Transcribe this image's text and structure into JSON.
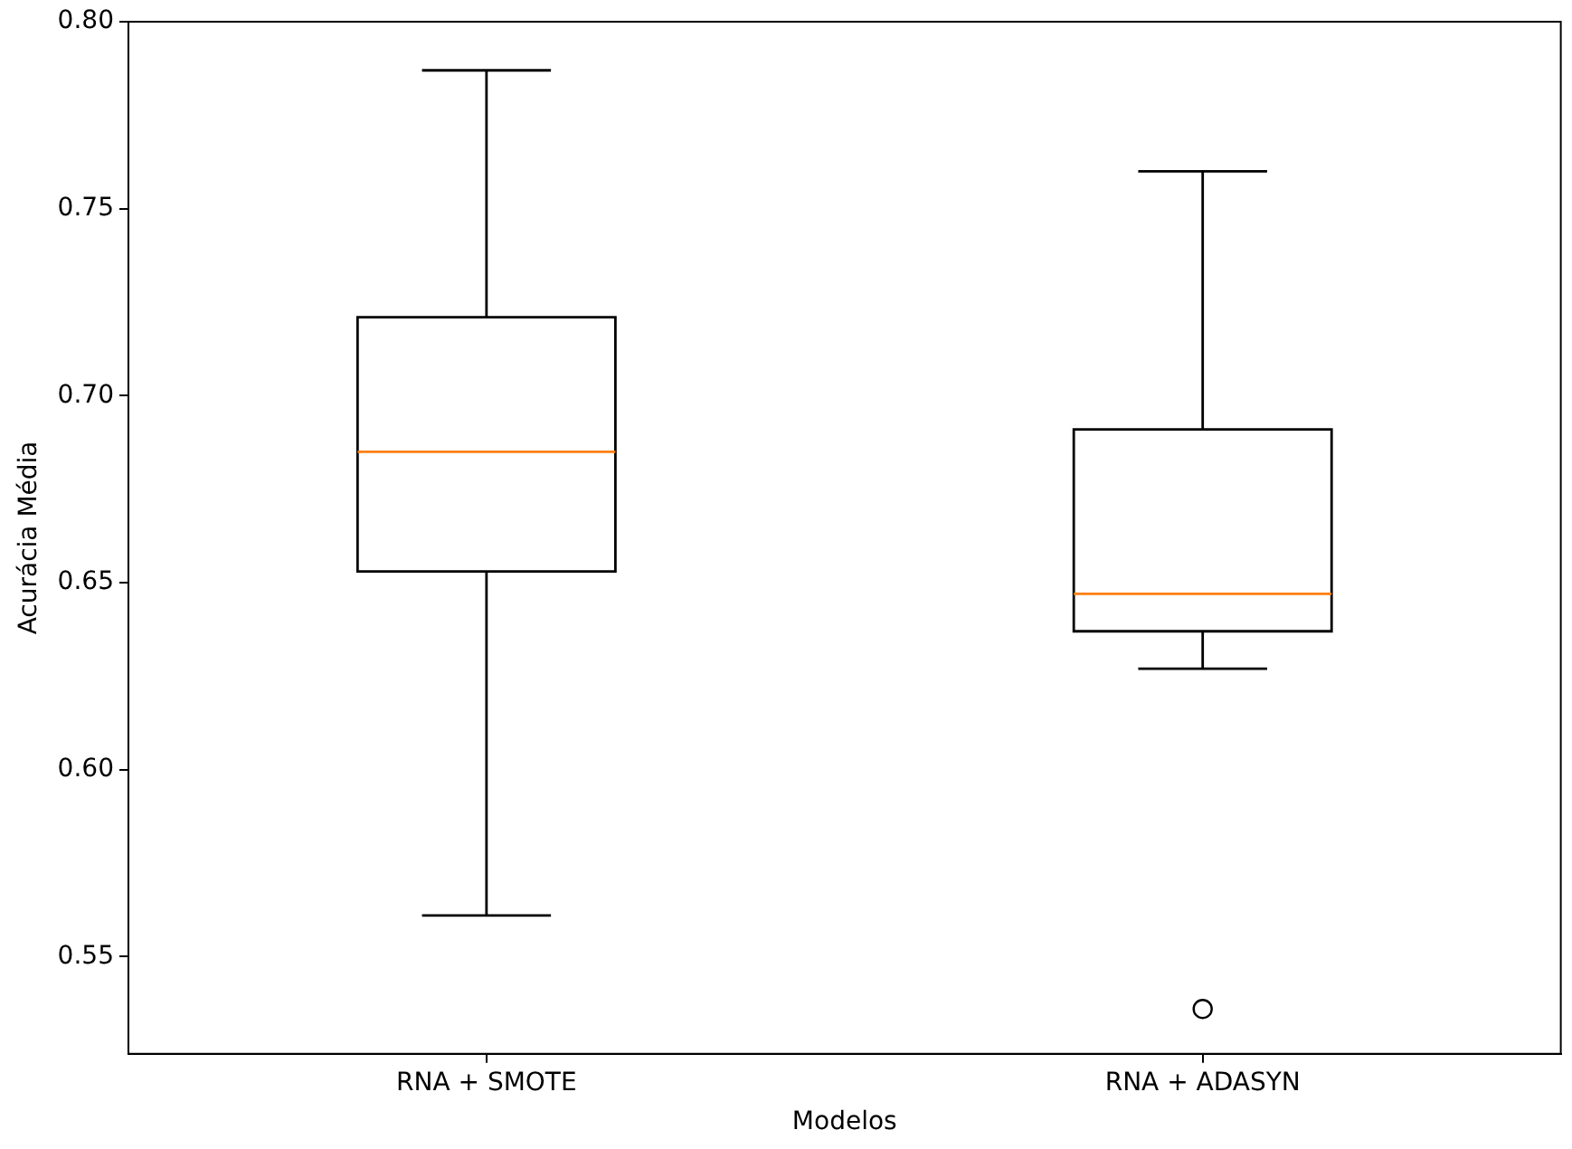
{
  "chart_data": {
    "type": "box",
    "xlabel": "Modelos",
    "ylabel": "Acurácia Média",
    "categories": [
      "RNA + SMOTE",
      "RNA + ADASYN"
    ],
    "boxes": [
      {
        "low": 0.561,
        "q1": 0.653,
        "median": 0.685,
        "q3": 0.721,
        "high": 0.787
      },
      {
        "low": 0.627,
        "q1": 0.637,
        "median": 0.647,
        "q3": 0.691,
        "high": 0.76,
        "outliers": [
          0.536
        ]
      }
    ],
    "ylim": [
      0.524,
      0.8
    ],
    "yticks": [
      0.55,
      {
        "value": 0.6,
        "label": "0.60"
      },
      0.65,
      {
        "value": 0.7,
        "label": "0.70"
      },
      0.75,
      {
        "value": 0.8,
        "label": "0.80"
      }
    ]
  }
}
